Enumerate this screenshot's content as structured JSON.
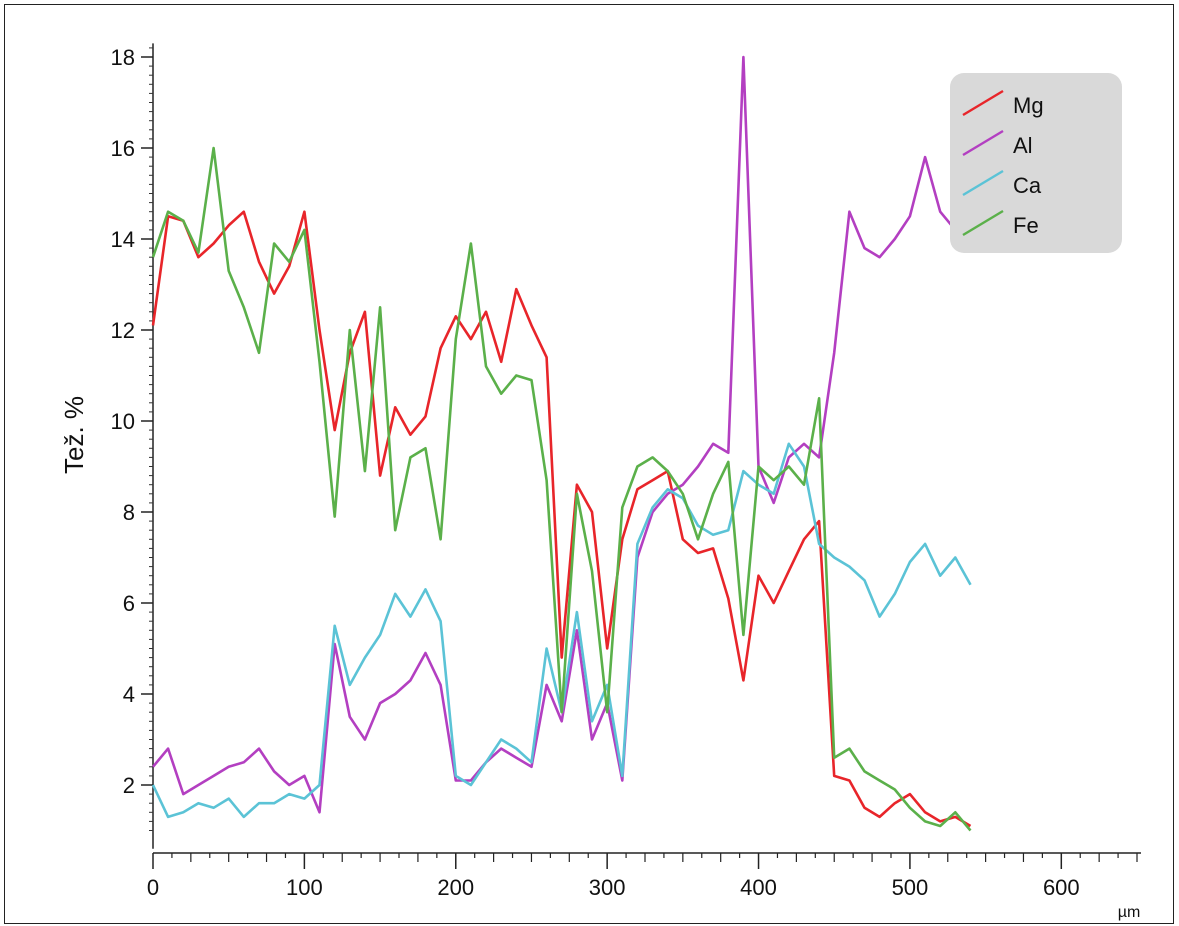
{
  "chart_data": {
    "type": "line",
    "title": "",
    "xlabel": "µm",
    "ylabel": "Tež. %",
    "xlim": [
      0,
      650
    ],
    "ylim": [
      0.6,
      18.5
    ],
    "xticks": [
      0,
      100,
      200,
      300,
      400,
      500,
      600
    ],
    "yticks": [
      2,
      4,
      6,
      8,
      10,
      12,
      14,
      16,
      18
    ],
    "grid": false,
    "legend": "top-right",
    "x": [
      0,
      10,
      20,
      30,
      40,
      50,
      60,
      70,
      80,
      90,
      100,
      110,
      120,
      130,
      140,
      150,
      160,
      170,
      180,
      190,
      200,
      210,
      220,
      230,
      240,
      250,
      260,
      270,
      280,
      290,
      300,
      310,
      320,
      330,
      340,
      350,
      360,
      370,
      380,
      390,
      400,
      410,
      420,
      430,
      440,
      450,
      460,
      470,
      480,
      490,
      500,
      510,
      520,
      530,
      540
    ],
    "series": [
      {
        "name": "Mg",
        "color": "#e8252a",
        "values": [
          12.1,
          14.5,
          14.4,
          13.6,
          13.9,
          14.3,
          14.6,
          13.5,
          12.8,
          13.4,
          14.6,
          12.0,
          9.8,
          11.5,
          12.4,
          8.8,
          10.3,
          9.7,
          10.1,
          11.6,
          12.3,
          11.8,
          12.4,
          11.3,
          12.9,
          12.1,
          11.4,
          4.8,
          8.6,
          8.0,
          5.0,
          7.4,
          8.5,
          8.7,
          8.9,
          7.4,
          7.1,
          7.2,
          6.1,
          4.3,
          6.6,
          6.0,
          6.7,
          7.4,
          7.8,
          2.2,
          2.1,
          1.5,
          1.3,
          1.6,
          1.8,
          1.4,
          1.2,
          1.3,
          1.1
        ]
      },
      {
        "name": "Al",
        "color": "#b33fc1",
        "values": [
          2.4,
          2.8,
          1.8,
          2.0,
          2.2,
          2.4,
          2.5,
          2.8,
          2.3,
          2.0,
          2.2,
          1.4,
          5.1,
          3.5,
          3.0,
          3.8,
          4.0,
          4.3,
          4.9,
          4.2,
          2.1,
          2.1,
          2.5,
          2.8,
          2.6,
          2.4,
          4.2,
          3.4,
          5.4,
          3.0,
          3.8,
          2.1,
          7.0,
          8.0,
          8.4,
          8.6,
          9.0,
          9.5,
          9.3,
          18.0,
          9.0,
          8.2,
          9.2,
          9.5,
          9.2,
          11.5,
          14.6,
          13.8,
          13.6,
          14.0,
          14.5,
          15.8,
          14.6,
          14.2,
          14.6
        ]
      },
      {
        "name": "Ca",
        "color": "#5bc3d6",
        "values": [
          2.0,
          1.3,
          1.4,
          1.6,
          1.5,
          1.7,
          1.3,
          1.6,
          1.6,
          1.8,
          1.7,
          2.0,
          5.5,
          4.2,
          4.8,
          5.3,
          6.2,
          5.7,
          6.3,
          5.6,
          2.2,
          2.0,
          2.5,
          3.0,
          2.8,
          2.5,
          5.0,
          3.6,
          5.8,
          3.4,
          4.2,
          2.2,
          7.3,
          8.1,
          8.5,
          8.3,
          7.7,
          7.5,
          7.6,
          8.9,
          8.6,
          8.4,
          9.5,
          9.0,
          7.3,
          7.0,
          6.8,
          6.5,
          5.7,
          6.2,
          6.9,
          7.3,
          6.6,
          7.0,
          6.4
        ]
      },
      {
        "name": "Fe",
        "color": "#5bb04a",
        "values": [
          13.6,
          14.6,
          14.4,
          13.7,
          16.0,
          13.3,
          12.5,
          11.5,
          13.9,
          13.5,
          14.2,
          11.3,
          7.9,
          12.0,
          8.9,
          12.5,
          7.6,
          9.2,
          9.4,
          7.4,
          11.8,
          13.9,
          11.2,
          10.6,
          11.0,
          10.9,
          8.7,
          3.6,
          8.4,
          6.7,
          3.6,
          8.1,
          9.0,
          9.2,
          8.9,
          8.4,
          7.4,
          8.4,
          9.1,
          5.3,
          9.0,
          8.7,
          9.0,
          8.6,
          10.5,
          2.6,
          2.8,
          2.3,
          2.1,
          1.9,
          1.5,
          1.2,
          1.1,
          1.4,
          1.0
        ]
      }
    ]
  }
}
